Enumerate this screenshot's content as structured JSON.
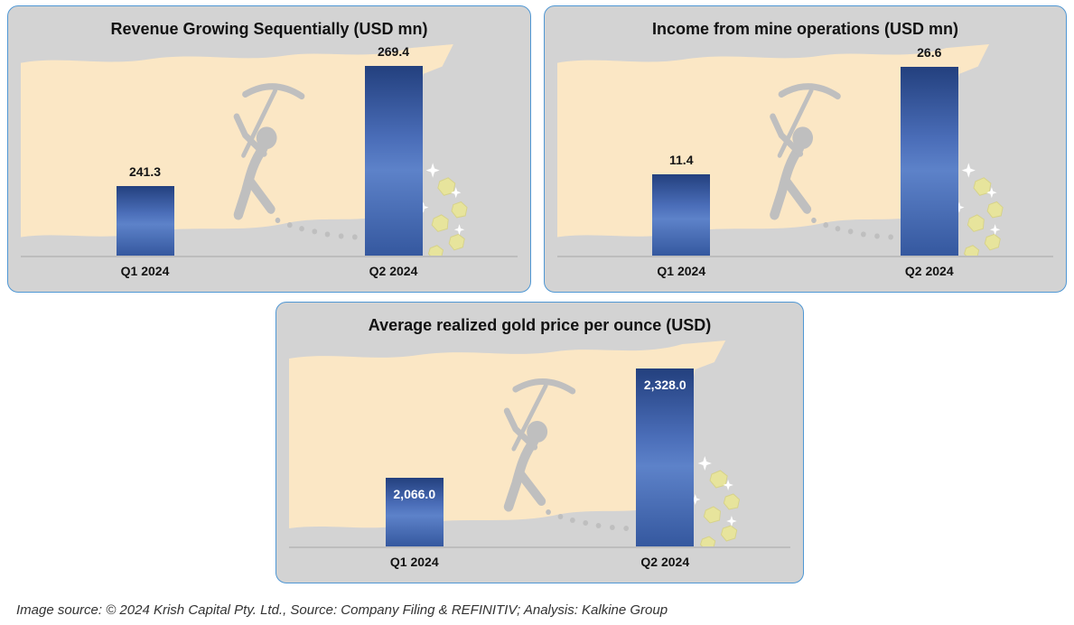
{
  "chart_data": [
    {
      "type": "bar",
      "title": "Revenue Growing Sequentially (USD mn)",
      "categories": [
        "Q1 2024",
        "Q2 2024"
      ],
      "values": [
        241.3,
        269.4
      ],
      "value_labels": [
        "241.3",
        "269.4"
      ],
      "ylim": [
        225,
        275
      ],
      "xlabel": "",
      "ylabel": "",
      "grid": false,
      "legend": "none",
      "label_position": "above"
    },
    {
      "type": "bar",
      "title": "Income from mine operations (USD mn)",
      "categories": [
        "Q1 2024",
        "Q2 2024"
      ],
      "values": [
        11.4,
        26.6
      ],
      "value_labels": [
        "11.4",
        "26.6"
      ],
      "ylim": [
        0,
        30
      ],
      "xlabel": "",
      "ylabel": "",
      "grid": false,
      "legend": "none",
      "label_position": "above"
    },
    {
      "type": "bar",
      "title": "Average realized gold price per ounce (USD)",
      "categories": [
        "Q1 2024",
        "Q2 2024"
      ],
      "values": [
        2066.0,
        2328.0
      ],
      "value_labels": [
        "2,066.0",
        "2,328.0"
      ],
      "ylim": [
        1900,
        2400
      ],
      "xlabel": "",
      "ylabel": "",
      "grid": false,
      "legend": "none",
      "label_position": "inside-top"
    }
  ],
  "footer": {
    "text": "Image source: © 2024 Krish Capital Pty. Ltd., Source: Company Filing & REFINITIV; Analysis: Kalkine Group"
  },
  "icons": {
    "watermark": "miner-with-pickaxe-cliff-gold-nuggets"
  },
  "colors": {
    "panel_background": "#d3d3d3",
    "panel_border": "#4f97d4",
    "bar_dark": "#23407e",
    "bar_light": "#5d82c9",
    "watermark_cream": "#fbe7c5",
    "nugget_yellow": "#e7e49c",
    "axis_line": "#bdbdbd"
  }
}
